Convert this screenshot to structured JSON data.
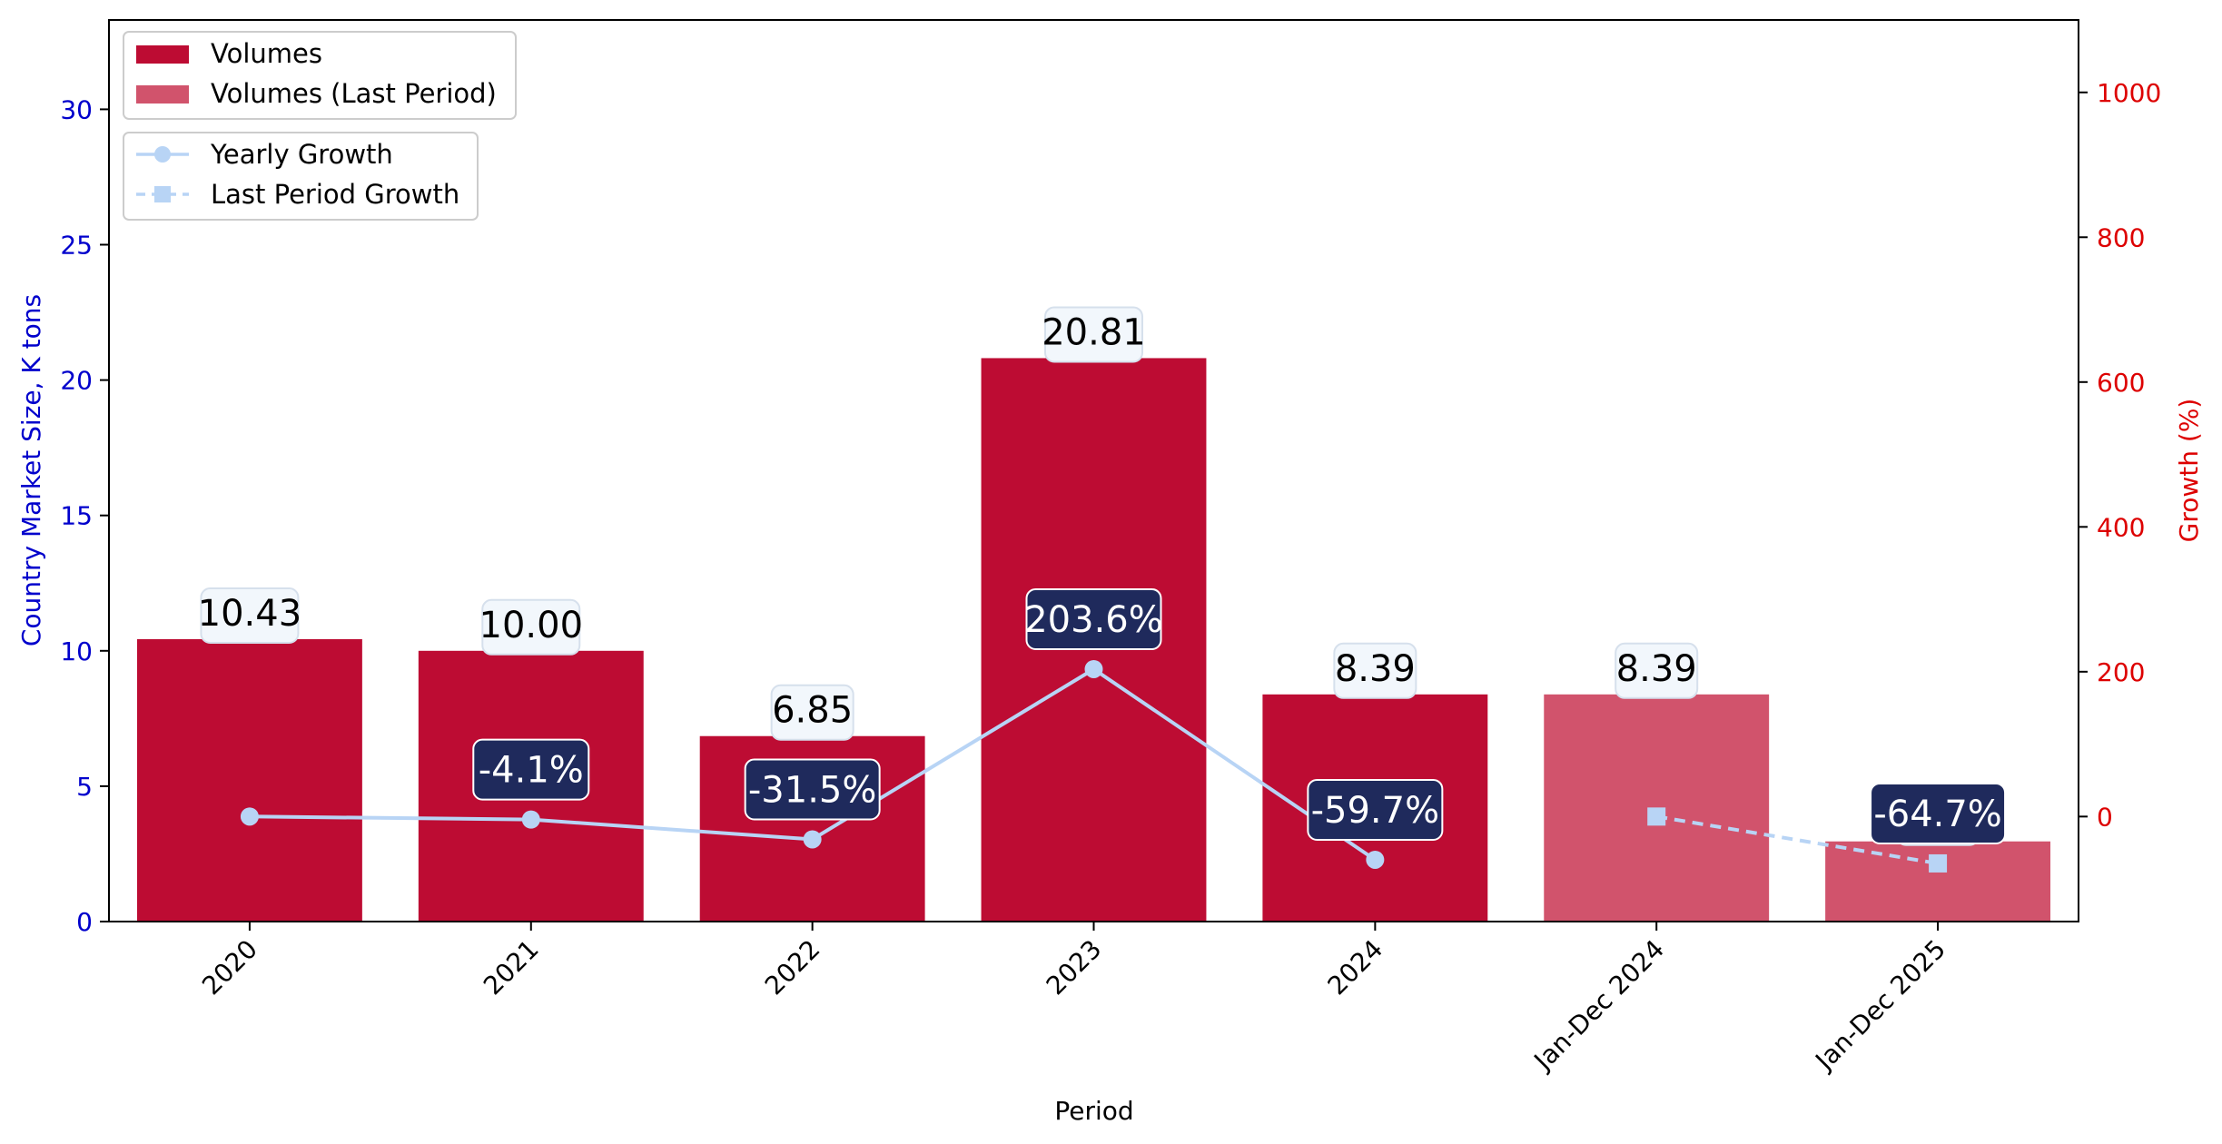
{
  "chart_data": {
    "type": "bar",
    "categories": [
      "2020",
      "2021",
      "2022",
      "2023",
      "2024",
      "Jan-Dec 2024",
      "Jan-Dec 2025"
    ],
    "xlabel": "Period",
    "ylabel": "Country Market Size, K tons",
    "y2label": "Growth (%)",
    "ylim": [
      0,
      33.3
    ],
    "y2lim": [
      -145,
      1100
    ],
    "yticks": [
      "0",
      "5",
      "10",
      "15",
      "20",
      "25",
      "30"
    ],
    "y2ticks": [
      "0",
      "200",
      "400",
      "600",
      "800",
      "1000"
    ],
    "grid": false,
    "legend_position": "top-left",
    "series": [
      {
        "name": "Volumes",
        "kind": "bar",
        "color": "#bd0c33",
        "values": [
          10.43,
          10.0,
          6.85,
          20.81,
          8.39,
          null,
          null
        ],
        "labels": [
          "10.43",
          "10.00",
          "6.85",
          "20.81",
          "8.39",
          "",
          ""
        ]
      },
      {
        "name": "Volumes (Last Period)",
        "kind": "bar",
        "color": "#d1536c",
        "values": [
          null,
          null,
          null,
          null,
          null,
          8.39,
          2.96
        ],
        "labels": [
          "",
          "",
          "",
          "",
          "",
          "8.39",
          "2.96"
        ]
      },
      {
        "name": "Yearly Growth",
        "kind": "line",
        "axis": "right",
        "color": "#b8d4f5",
        "marker": "circle",
        "values": [
          0,
          -4.1,
          -31.5,
          203.6,
          -59.7,
          null,
          null
        ],
        "labels": [
          "",
          "-4.1%",
          "-31.5%",
          "203.6%",
          "-59.7%",
          "",
          ""
        ]
      },
      {
        "name": "Last Period Growth",
        "kind": "line",
        "axis": "right",
        "color": "#b8d4f5",
        "marker": "square",
        "dashed": true,
        "values": [
          null,
          null,
          null,
          null,
          null,
          0,
          -64.7
        ],
        "labels": [
          "",
          "",
          "",
          "",
          "",
          "",
          "-64.7%"
        ]
      }
    ]
  }
}
